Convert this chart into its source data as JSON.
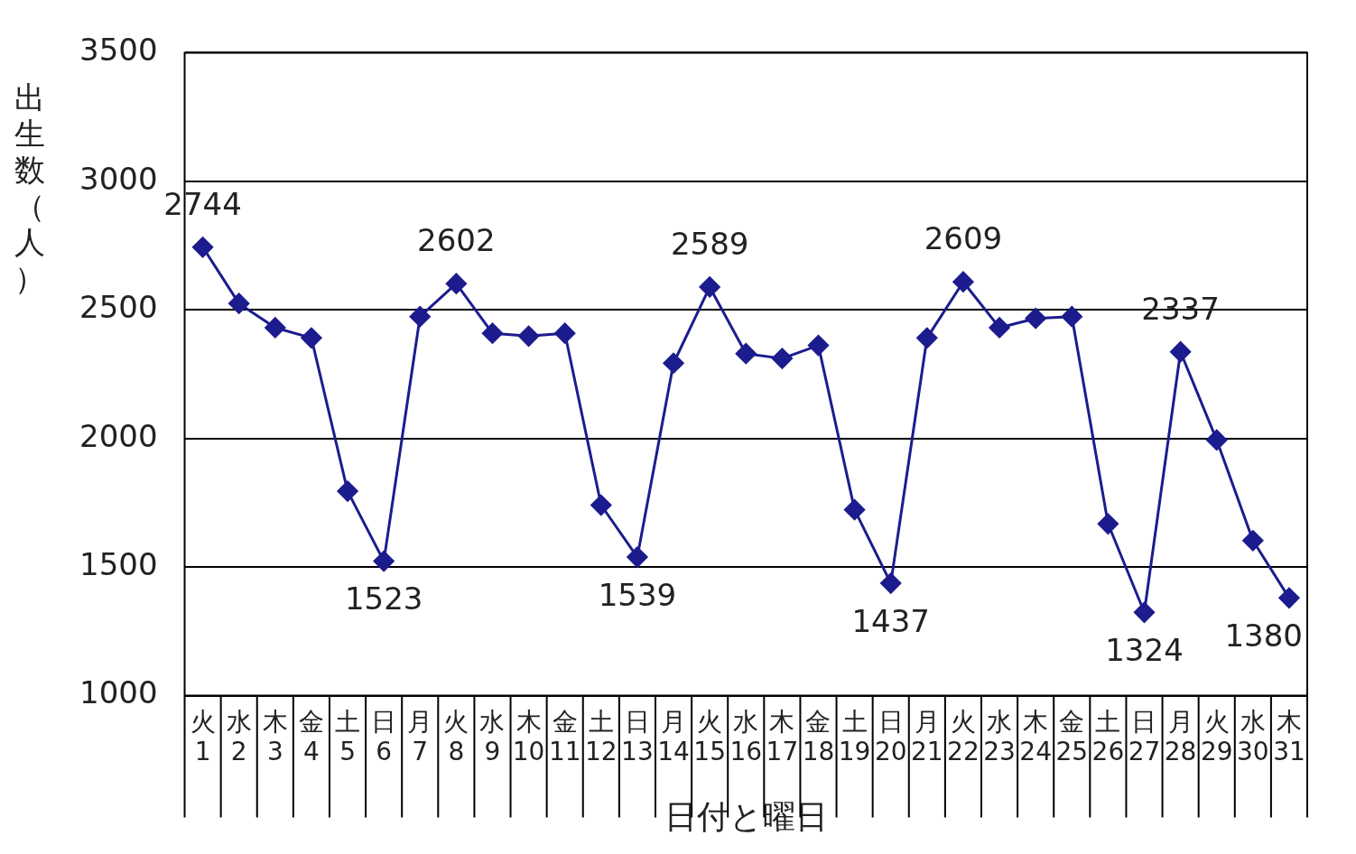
{
  "chart_data": {
    "type": "line",
    "xlabel": "日付と曜日",
    "ylabel": "出生数（人）",
    "categories": [
      "火\n1",
      "水\n2",
      "木\n3",
      "金\n4",
      "土\n5",
      "日\n6",
      "月\n7",
      "火\n8",
      "水\n9",
      "木\n10",
      "金\n11",
      "土\n12",
      "日\n13",
      "月\n14",
      "火\n15",
      "水\n16",
      "木\n17",
      "金\n18",
      "土\n19",
      "日\n20",
      "月\n21",
      "火\n22",
      "水\n23",
      "木\n24",
      "金\n25",
      "土\n26",
      "日\n27",
      "月\n28",
      "火\n29",
      "水\n30",
      "木\n31"
    ],
    "series": [
      {
        "color": "#1c1c8e",
        "values": [
          2744,
          2525,
          2431,
          2391,
          1795,
          1523,
          2474,
          2602,
          2409,
          2398,
          2409,
          1741,
          1539,
          2293,
          2589,
          2330,
          2311,
          2362,
          1723,
          1437,
          2391,
          2609,
          2431,
          2467,
          2474,
          1668,
          1324,
          2337,
          1994,
          1603,
          1380
        ],
        "value_labels": [
          "2744",
          null,
          null,
          null,
          null,
          "1523",
          null,
          "2602",
          null,
          null,
          null,
          null,
          "1539",
          null,
          "2589",
          null,
          null,
          null,
          null,
          "1437",
          null,
          "2609",
          null,
          null,
          null,
          null,
          "1324",
          "2337",
          null,
          null,
          "1380"
        ]
      }
    ],
    "ylim": [
      1000,
      3500
    ],
    "yticks": [
      1000,
      1500,
      2000,
      2500,
      3000,
      3500
    ],
    "grid": "y",
    "legend": false,
    "marker": "diamond",
    "line_style": "solid"
  }
}
